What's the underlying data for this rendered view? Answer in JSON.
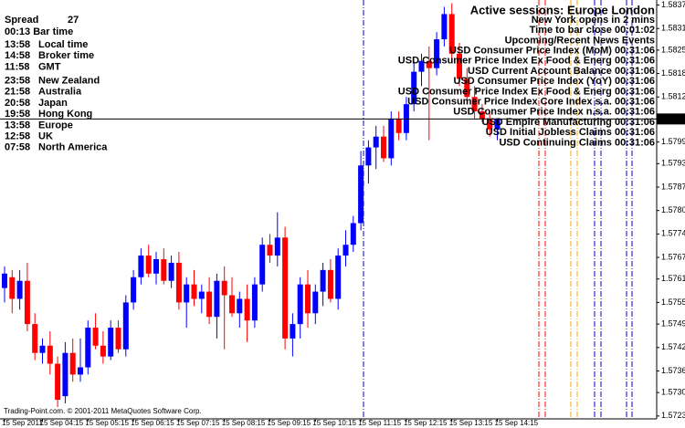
{
  "chart_data": {
    "type": "candlestick",
    "categories": [
      "15 Sep 2011",
      null,
      null,
      null,
      null,
      "15 Sep 04:15",
      null,
      null,
      null,
      null,
      null,
      "15 Sep 05:15",
      null,
      null,
      null,
      null,
      null,
      "15 Sep 06:15",
      null,
      null,
      null,
      null,
      null,
      "15 Sep 07:15",
      null,
      null,
      null,
      null,
      null,
      "15 Sep 08:15",
      null,
      null,
      null,
      null,
      null,
      "15 Sep 09:15",
      null,
      null,
      null,
      null,
      null,
      "15 Sep 10:15",
      null,
      null,
      null,
      null,
      null,
      "15 Sep 11:15",
      null,
      null,
      null,
      null,
      null,
      "15 Sep 12:15",
      null,
      null,
      null,
      null,
      null,
      "15 Sep 13:15",
      null,
      null,
      null,
      null,
      null,
      "15 Sep 14:15"
    ],
    "open": [
      1.5759,
      1.5762,
      1.5756,
      1.5761,
      1.5749,
      1.5741,
      1.5743,
      1.5738,
      1.5729,
      1.5741,
      1.5735,
      1.5737,
      1.5748,
      1.5743,
      1.574,
      1.5748,
      1.5742,
      1.5755,
      1.5762,
      1.5768,
      1.5763,
      1.5767,
      1.5761,
      1.5766,
      1.5755,
      1.576,
      1.5756,
      1.5758,
      1.5751,
      1.5761,
      1.5757,
      1.5752,
      1.5756,
      1.575,
      1.576,
      1.5771,
      1.5768,
      1.5773,
      1.5745,
      1.5749,
      1.576,
      1.5752,
      1.5758,
      1.5764,
      1.5756,
      1.5768,
      1.5771,
      1.5777,
      1.5793,
      1.5798,
      1.5801,
      1.5795,
      1.5806,
      1.5802,
      1.581,
      1.5819,
      1.5822,
      1.582,
      1.5828,
      1.5835,
      1.5824,
      1.5817,
      1.5812,
      1.5808,
      1.5806,
      1.5803
    ],
    "high": [
      1.5765,
      1.5764,
      1.5764,
      1.5766,
      1.5752,
      1.5745,
      1.5747,
      1.574,
      1.5744,
      1.5745,
      1.5745,
      1.575,
      1.5752,
      1.5747,
      1.575,
      1.575,
      1.5757,
      1.5764,
      1.577,
      1.5771,
      1.5769,
      1.577,
      1.5768,
      1.5769,
      1.5762,
      1.5764,
      1.576,
      1.5762,
      1.5763,
      1.5765,
      1.5762,
      1.5758,
      1.576,
      1.5762,
      1.5773,
      1.5774,
      1.578,
      1.5776,
      1.5752,
      1.5762,
      1.5764,
      1.576,
      1.5766,
      1.5767,
      1.577,
      1.5775,
      1.5779,
      1.5797,
      1.58,
      1.5804,
      1.5804,
      1.5808,
      1.5808,
      1.5812,
      1.5822,
      1.5824,
      1.5826,
      1.583,
      1.5837,
      1.5838,
      1.5827,
      1.582,
      1.5815,
      1.581,
      1.5808,
      1.5806
    ],
    "low": [
      1.5755,
      1.5752,
      1.5753,
      1.5747,
      1.5739,
      1.5738,
      1.5735,
      1.5726,
      1.5727,
      1.5733,
      1.5733,
      1.5735,
      1.5742,
      1.5738,
      1.5739,
      1.5741,
      1.574,
      1.5753,
      1.576,
      1.5762,
      1.576,
      1.576,
      1.5759,
      1.5753,
      1.5748,
      1.5754,
      1.5752,
      1.5749,
      1.5745,
      1.5742,
      1.5751,
      1.5748,
      1.5744,
      1.5748,
      1.5758,
      1.5766,
      1.5765,
      1.5742,
      1.574,
      1.5745,
      1.5748,
      1.5749,
      1.5754,
      1.5755,
      1.5753,
      1.5765,
      1.5769,
      1.5775,
      1.5788,
      1.5792,
      1.5794,
      1.5793,
      1.58,
      1.58,
      1.5808,
      1.5815,
      1.58,
      1.5818,
      1.5826,
      1.5822,
      1.5815,
      1.581,
      1.5806,
      1.5805,
      1.5801,
      1.58
    ],
    "close": [
      1.5763,
      1.5756,
      1.5761,
      1.5749,
      1.5741,
      1.5743,
      1.5738,
      1.5728,
      1.5741,
      1.5735,
      1.5737,
      1.5748,
      1.5743,
      1.574,
      1.5748,
      1.5742,
      1.5755,
      1.5762,
      1.5768,
      1.5763,
      1.5767,
      1.5761,
      1.5766,
      1.5755,
      1.576,
      1.5756,
      1.5758,
      1.5751,
      1.5761,
      1.5757,
      1.5752,
      1.5756,
      1.575,
      1.576,
      1.5771,
      1.5768,
      1.5773,
      1.5745,
      1.5749,
      1.576,
      1.5752,
      1.5758,
      1.5764,
      1.5756,
      1.5768,
      1.5771,
      1.5777,
      1.5793,
      1.5798,
      1.5801,
      1.5795,
      1.5806,
      1.5802,
      1.581,
      1.5819,
      1.5822,
      1.582,
      1.5828,
      1.5835,
      1.5824,
      1.5817,
      1.5812,
      1.5808,
      1.5806,
      1.5803,
      1.5806
    ],
    "up_color": "#0000ff",
    "down_color": "#ff0000",
    "ylim": [
      1.57227,
      1.58389
    ],
    "yticks": [
      1.58375,
      {
        "value": 1.5831,
        "label": "1.58310"
      },
      {
        "value": 1.5825,
        "label": "1.58250"
      },
      1.58185,
      {
        "value": 1.5812,
        "label": "1.58120"
      },
      1.57995,
      1.57935,
      {
        "value": 1.5787,
        "label": "1.57870"
      },
      1.57805,
      {
        "value": 1.5774,
        "label": "1.57740"
      },
      1.57675,
      1.57615,
      {
        "value": 1.5755,
        "label": "1.57550"
      },
      {
        "value": 1.5749,
        "label": "1.57490"
      },
      1.57425,
      {
        "value": 1.5736,
        "label": "1.57360"
      },
      {
        "value": 1.573,
        "label": "1.57300"
      },
      1.57235
    ],
    "current_price": 1.58059
  },
  "info_panel": {
    "spread_label": "Spread",
    "spread": 27,
    "bar_time": "00:13 Bar time",
    "clocks": [
      {
        "time": "13:58",
        "label": "Local time",
        "time_color": "#ff0000",
        "label_color": "#2f4f4f"
      },
      {
        "time": "14:58",
        "label": "Broker time",
        "time_color": "#ff0000",
        "label_color": "#2f4f4f"
      },
      {
        "time": "11:58",
        "label": "GMT",
        "time_color": "#ff0000",
        "label_color": "#2f4f4f"
      },
      {
        "time": "23:58",
        "label": "New Zealand",
        "time_color": "#2f4f4f",
        "label_color": "#2f4f4f"
      },
      {
        "time": "21:58",
        "label": "Australia",
        "time_color": "#2f4f4f",
        "label_color": "#2f4f4f"
      },
      {
        "time": "20:58",
        "label": "Japan",
        "time_color": "#2f4f4f",
        "label_color": "#2f4f4f"
      },
      {
        "time": "19:58",
        "label": "Hong Kong",
        "time_color": "#2f4f4f",
        "label_color": "#2f4f4f"
      },
      {
        "time": "13:58",
        "label": "Europe",
        "time_color": "#ff0000",
        "label_color": "#ff0000"
      },
      {
        "time": "12:58",
        "label": "UK",
        "time_color": "#ff0000",
        "label_color": "#ff0000"
      },
      {
        "time": "07:58",
        "label": "North America",
        "time_color": "#2f4f4f",
        "label_color": "#2f4f4f"
      }
    ]
  },
  "sessions": {
    "title": "Active sessions:  Europe London",
    "title_color": "#800080",
    "lines": [
      {
        "text": "New York opens in 2 mins",
        "color": "#ff0000"
      },
      {
        "text": "Time to bar close 00:01:02",
        "color": "#008000"
      },
      {
        "text": "Upcoming/Recent News Events",
        "color": "#800080"
      },
      {
        "text": "USD Consumer Price Index (MoM) 00:31:06",
        "color": "#ffa500"
      },
      {
        "text": "USD Consumer Price Index Ex Food & Energ 00:31:06",
        "color": "#ffa500"
      },
      {
        "text": "USD Current Account Balance 00:31:06",
        "color": "#0000ff"
      },
      {
        "text": "USD Consumer Price Index (YoY) 00:31:06",
        "color": "#ff0000"
      },
      {
        "text": "USD Consumer Price Index Ex Food & Energ 00:31:06",
        "color": "#ff0000"
      },
      {
        "text": "USD Consumer Price Index Core Index s.a. 00:31:06",
        "color": "#ffa500"
      },
      {
        "text": "USD Consumer Price Index n.s.a. 00:31:06",
        "color": "#ffa500"
      },
      {
        "text": "USD Empire Manufacturing 00:31:06",
        "color": "#0000ff"
      },
      {
        "text": "USD Initial Jobless Claims 00:31:06",
        "color": "#0000ff"
      },
      {
        "text": "USD Continuing Claims 00:31:06",
        "color": "#0000ff"
      }
    ]
  },
  "footer": "Trading-Point.com. © 2001-2011 MetaQuotes Software Corp."
}
